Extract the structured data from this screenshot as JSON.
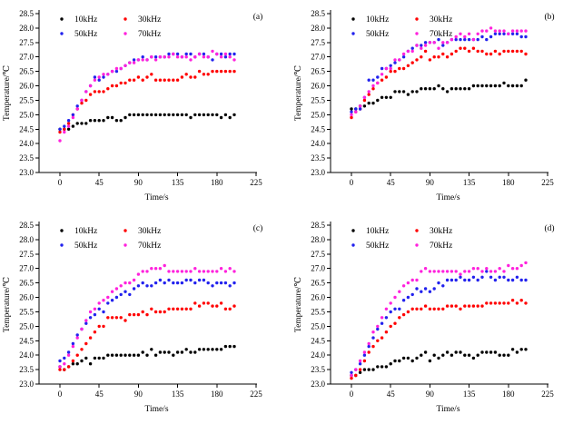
{
  "figure": {
    "background": "#ffffff",
    "axis_color": "#000000",
    "point_radius": 1.7,
    "series_colors": {
      "10kHz": "#000000",
      "30kHz": "#ff0000",
      "50kHz": "#2222ee",
      "70kHz": "#ff22dd"
    }
  },
  "chart_data": [
    {
      "type": "scatter",
      "panel_label": "(a)",
      "xlabel": "Time/s",
      "ylabel": "Temperature/℃",
      "xlim": [
        -24,
        225
      ],
      "ylim": [
        23.0,
        28.5
      ],
      "xticks": [
        0,
        45,
        90,
        135,
        180,
        225
      ],
      "yticks": [
        23.0,
        23.5,
        24.0,
        24.5,
        25.0,
        25.5,
        26.0,
        26.5,
        27.0,
        27.5,
        28.0,
        28.5
      ],
      "grid": false,
      "legend_position": "inside-top-left",
      "x": [
        0,
        5,
        10,
        15,
        20,
        25,
        30,
        35,
        40,
        45,
        50,
        55,
        60,
        65,
        70,
        75,
        80,
        85,
        90,
        95,
        100,
        105,
        110,
        115,
        120,
        125,
        130,
        135,
        140,
        145,
        150,
        155,
        160,
        165,
        170,
        175,
        180,
        185,
        190,
        195,
        200
      ],
      "series": [
        {
          "name": "10kHz",
          "color": "#000000",
          "values": [
            24.5,
            24.5,
            24.5,
            24.6,
            24.7,
            24.7,
            24.7,
            24.8,
            24.8,
            24.8,
            24.8,
            24.9,
            24.9,
            24.8,
            24.8,
            24.9,
            25.0,
            25.0,
            25.0,
            25.0,
            25.0,
            25.0,
            25.0,
            25.0,
            25.0,
            25.0,
            25.0,
            25.0,
            25.0,
            25.0,
            24.9,
            25.0,
            25.0,
            25.0,
            25.0,
            25.0,
            25.0,
            24.9,
            25.0,
            24.9,
            25.0
          ]
        },
        {
          "name": "30kHz",
          "color": "#ff0000",
          "values": [
            24.4,
            24.5,
            24.7,
            25.0,
            25.2,
            25.4,
            25.5,
            25.7,
            25.8,
            25.8,
            25.8,
            25.9,
            26.0,
            26.0,
            26.1,
            26.1,
            26.2,
            26.2,
            26.3,
            26.2,
            26.3,
            26.4,
            26.2,
            26.2,
            26.2,
            26.2,
            26.2,
            26.2,
            26.3,
            26.4,
            26.3,
            26.3,
            26.5,
            26.4,
            26.4,
            26.5,
            26.5,
            26.5,
            26.5,
            26.5,
            26.5
          ]
        },
        {
          "name": "50kHz",
          "color": "#2222ee",
          "values": [
            24.5,
            24.6,
            24.8,
            25.0,
            25.3,
            25.5,
            25.8,
            26.0,
            26.3,
            26.2,
            26.3,
            26.4,
            26.5,
            26.5,
            26.6,
            26.7,
            26.8,
            26.9,
            26.9,
            27.0,
            26.9,
            27.0,
            27.0,
            27.0,
            27.0,
            27.1,
            27.1,
            27.1,
            27.0,
            27.1,
            27.1,
            27.0,
            27.1,
            27.1,
            27.0,
            26.9,
            27.1,
            27.1,
            27.0,
            27.1,
            27.1
          ]
        },
        {
          "name": "70kHz",
          "color": "#ff22dd",
          "values": [
            24.1,
            24.4,
            24.6,
            24.9,
            25.2,
            25.5,
            25.8,
            26.0,
            26.2,
            26.3,
            26.4,
            26.4,
            26.5,
            26.6,
            26.6,
            26.7,
            26.8,
            26.8,
            26.9,
            26.9,
            26.9,
            27.0,
            26.9,
            27.0,
            27.0,
            27.0,
            27.1,
            27.0,
            27.0,
            27.0,
            26.9,
            27.0,
            27.1,
            27.0,
            27.0,
            27.2,
            27.1,
            27.0,
            27.1,
            27.0,
            26.9
          ]
        }
      ]
    },
    {
      "type": "scatter",
      "panel_label": "(b)",
      "xlabel": "Time/s",
      "ylabel": "Temperature/℃",
      "xlim": [
        -24,
        225
      ],
      "ylim": [
        23.0,
        28.5
      ],
      "xticks": [
        0,
        45,
        90,
        135,
        180,
        225
      ],
      "yticks": [
        23.0,
        23.5,
        24.0,
        24.5,
        25.0,
        25.5,
        26.0,
        26.5,
        27.0,
        27.5,
        28.0,
        28.5
      ],
      "grid": false,
      "legend_position": "inside-top-left",
      "x": [
        0,
        5,
        10,
        15,
        20,
        25,
        30,
        35,
        40,
        45,
        50,
        55,
        60,
        65,
        70,
        75,
        80,
        85,
        90,
        95,
        100,
        105,
        110,
        115,
        120,
        125,
        130,
        135,
        140,
        145,
        150,
        155,
        160,
        165,
        170,
        175,
        180,
        185,
        190,
        195,
        200
      ],
      "series": [
        {
          "name": "10kHz",
          "color": "#000000",
          "values": [
            25.2,
            25.2,
            25.3,
            25.3,
            25.4,
            25.4,
            25.5,
            25.6,
            25.6,
            25.6,
            25.8,
            25.8,
            25.8,
            25.7,
            25.8,
            25.8,
            25.9,
            25.9,
            25.9,
            25.9,
            26.0,
            25.9,
            25.8,
            25.9,
            25.9,
            25.9,
            25.9,
            25.9,
            26.0,
            26.0,
            26.0,
            26.0,
            26.0,
            26.0,
            26.0,
            26.1,
            26.0,
            26.0,
            26.0,
            26.0,
            26.2
          ]
        },
        {
          "name": "30kHz",
          "color": "#ff0000",
          "values": [
            24.9,
            25.1,
            25.2,
            25.5,
            25.7,
            25.9,
            26.1,
            26.2,
            26.3,
            26.5,
            26.5,
            26.6,
            26.6,
            26.7,
            26.8,
            26.9,
            27.0,
            27.2,
            26.9,
            27.0,
            27.0,
            27.1,
            27.0,
            27.1,
            27.2,
            27.3,
            27.3,
            27.2,
            27.3,
            27.2,
            27.2,
            27.1,
            27.1,
            27.2,
            27.1,
            27.2,
            27.2,
            27.2,
            27.2,
            27.2,
            27.1
          ]
        },
        {
          "name": "50kHz",
          "color": "#2222ee",
          "values": [
            25.1,
            25.2,
            25.2,
            25.6,
            26.2,
            26.2,
            26.3,
            26.6,
            26.6,
            26.7,
            26.8,
            26.9,
            27.0,
            27.2,
            27.3,
            27.4,
            27.4,
            27.5,
            27.5,
            27.5,
            27.6,
            27.4,
            27.5,
            27.6,
            27.6,
            27.6,
            27.6,
            27.6,
            27.6,
            27.6,
            27.7,
            27.6,
            27.7,
            27.8,
            27.8,
            27.8,
            27.8,
            27.8,
            27.8,
            27.7,
            27.7
          ]
        },
        {
          "name": "70kHz",
          "color": "#ff22dd",
          "values": [
            25.0,
            25.1,
            25.3,
            25.6,
            25.8,
            26.0,
            26.1,
            26.4,
            26.6,
            26.6,
            26.9,
            26.9,
            27.1,
            27.2,
            27.2,
            27.4,
            27.3,
            27.4,
            27.5,
            27.5,
            27.3,
            27.5,
            27.5,
            27.6,
            27.7,
            27.8,
            27.7,
            27.8,
            27.6,
            27.8,
            27.9,
            27.9,
            28.0,
            27.9,
            27.9,
            27.9,
            27.8,
            27.9,
            27.9,
            27.9,
            27.9
          ]
        }
      ]
    },
    {
      "type": "scatter",
      "panel_label": "(c)",
      "xlabel": "Time/s",
      "ylabel": "Temperature/℃",
      "xlim": [
        -24,
        225
      ],
      "ylim": [
        23.0,
        28.5
      ],
      "xticks": [
        0,
        45,
        90,
        135,
        180,
        225
      ],
      "yticks": [
        23.0,
        23.5,
        24.0,
        24.5,
        25.0,
        25.5,
        26.0,
        26.5,
        27.0,
        27.5,
        28.0,
        28.5
      ],
      "grid": false,
      "legend_position": "inside-top-left",
      "x": [
        0,
        5,
        10,
        15,
        20,
        25,
        30,
        35,
        40,
        45,
        50,
        55,
        60,
        65,
        70,
        75,
        80,
        85,
        90,
        95,
        100,
        105,
        110,
        115,
        120,
        125,
        130,
        135,
        140,
        145,
        150,
        155,
        160,
        165,
        170,
        175,
        180,
        185,
        190,
        195,
        200
      ],
      "series": [
        {
          "name": "10kHz",
          "color": "#000000",
          "values": [
            23.6,
            23.5,
            23.6,
            23.7,
            23.7,
            23.8,
            23.9,
            23.7,
            23.9,
            23.9,
            23.9,
            24.0,
            24.0,
            24.0,
            24.0,
            24.0,
            24.0,
            24.0,
            24.0,
            24.1,
            24.0,
            24.2,
            24.0,
            24.1,
            24.1,
            24.1,
            24.0,
            24.1,
            24.1,
            24.2,
            24.1,
            24.1,
            24.2,
            24.2,
            24.2,
            24.2,
            24.2,
            24.2,
            24.3,
            24.3,
            24.3
          ]
        },
        {
          "name": "30kHz",
          "color": "#ff0000",
          "values": [
            23.5,
            23.5,
            23.6,
            23.8,
            24.0,
            24.2,
            24.4,
            24.6,
            24.8,
            25.0,
            25.0,
            25.3,
            25.3,
            25.3,
            25.3,
            25.2,
            25.4,
            25.4,
            25.4,
            25.5,
            25.4,
            25.6,
            25.5,
            25.5,
            25.5,
            25.6,
            25.6,
            25.6,
            25.6,
            25.6,
            25.6,
            25.8,
            25.7,
            25.8,
            25.8,
            25.7,
            25.7,
            25.8,
            25.6,
            25.6,
            25.7
          ]
        },
        {
          "name": "50kHz",
          "color": "#2222ee",
          "values": [
            23.8,
            23.9,
            24.1,
            24.4,
            24.7,
            24.9,
            25.1,
            25.3,
            25.4,
            25.6,
            25.5,
            25.8,
            25.9,
            26.0,
            26.1,
            26.2,
            26.1,
            26.3,
            26.4,
            26.5,
            26.4,
            26.4,
            26.5,
            26.6,
            26.5,
            26.6,
            26.5,
            26.5,
            26.5,
            26.6,
            26.6,
            26.5,
            26.6,
            26.6,
            26.5,
            26.4,
            26.5,
            26.5,
            26.5,
            26.4,
            26.5
          ]
        },
        {
          "name": "70kHz",
          "color": "#ff22dd",
          "values": [
            23.6,
            23.7,
            24.0,
            24.3,
            24.6,
            24.9,
            25.2,
            25.5,
            25.6,
            25.8,
            25.9,
            26.0,
            26.2,
            26.3,
            26.4,
            26.5,
            26.5,
            26.6,
            26.8,
            26.9,
            26.9,
            27.0,
            27.0,
            27.0,
            27.1,
            26.9,
            26.9,
            26.9,
            26.9,
            26.9,
            26.9,
            27.0,
            26.9,
            26.9,
            26.9,
            26.9,
            26.9,
            27.0,
            26.9,
            27.0,
            26.9
          ]
        }
      ]
    },
    {
      "type": "scatter",
      "panel_label": "(d)",
      "xlabel": "Time/s",
      "ylabel": "Temperature/℃",
      "xlim": [
        -24,
        225
      ],
      "ylim": [
        23.0,
        28.5
      ],
      "xticks": [
        0,
        45,
        90,
        135,
        180,
        225
      ],
      "yticks": [
        23.0,
        23.5,
        24.0,
        24.5,
        25.0,
        25.5,
        26.0,
        26.5,
        27.0,
        27.5,
        28.0,
        28.5
      ],
      "grid": false,
      "legend_position": "inside-top-left",
      "x": [
        0,
        5,
        10,
        15,
        20,
        25,
        30,
        35,
        40,
        45,
        50,
        55,
        60,
        65,
        70,
        75,
        80,
        85,
        90,
        95,
        100,
        105,
        110,
        115,
        120,
        125,
        130,
        135,
        140,
        145,
        150,
        155,
        160,
        165,
        170,
        175,
        180,
        185,
        190,
        195,
        200
      ],
      "series": [
        {
          "name": "10kHz",
          "color": "#000000",
          "values": [
            23.3,
            23.3,
            23.4,
            23.5,
            23.5,
            23.5,
            23.6,
            23.6,
            23.6,
            23.7,
            23.8,
            23.8,
            23.9,
            23.9,
            23.8,
            23.9,
            24.0,
            24.1,
            23.8,
            24.0,
            23.9,
            24.0,
            24.1,
            24.0,
            24.1,
            24.1,
            24.0,
            24.0,
            23.9,
            24.0,
            24.1,
            24.1,
            24.1,
            24.1,
            24.0,
            24.0,
            24.0,
            24.2,
            24.1,
            24.2,
            24.2
          ]
        },
        {
          "name": "30kHz",
          "color": "#ff0000",
          "values": [
            23.2,
            23.3,
            23.5,
            23.8,
            24.1,
            24.3,
            24.5,
            24.6,
            24.8,
            25.0,
            25.1,
            25.3,
            25.4,
            25.5,
            25.6,
            25.6,
            25.6,
            25.7,
            25.6,
            25.6,
            25.6,
            25.6,
            25.7,
            25.7,
            25.7,
            25.6,
            25.7,
            25.7,
            25.7,
            25.7,
            25.7,
            25.8,
            25.8,
            25.8,
            25.8,
            25.8,
            25.8,
            25.9,
            25.8,
            25.9,
            25.8
          ]
        },
        {
          "name": "50kHz",
          "color": "#2222ee",
          "values": [
            23.4,
            23.5,
            23.7,
            24.0,
            24.3,
            24.6,
            24.9,
            25.1,
            25.3,
            25.5,
            25.6,
            25.6,
            25.9,
            26.0,
            26.1,
            26.3,
            26.2,
            26.3,
            26.2,
            26.3,
            26.5,
            26.4,
            26.6,
            26.6,
            26.6,
            26.7,
            26.6,
            26.6,
            26.7,
            26.6,
            26.7,
            26.9,
            26.7,
            26.6,
            26.7,
            26.7,
            26.6,
            26.6,
            26.7,
            26.6,
            26.6
          ]
        },
        {
          "name": "70kHz",
          "color": "#ff22dd",
          "values": [
            23.3,
            23.5,
            23.8,
            24.1,
            24.4,
            24.8,
            25.0,
            25.3,
            25.6,
            25.8,
            26.0,
            26.2,
            26.4,
            26.5,
            26.6,
            26.6,
            26.9,
            27.0,
            26.9,
            26.9,
            26.9,
            26.9,
            26.9,
            26.9,
            26.9,
            26.8,
            26.9,
            26.9,
            27.0,
            27.0,
            26.9,
            27.0,
            26.9,
            26.9,
            27.0,
            26.9,
            27.1,
            27.0,
            27.0,
            27.1,
            27.2
          ]
        }
      ]
    }
  ]
}
